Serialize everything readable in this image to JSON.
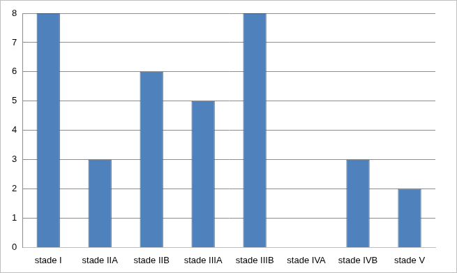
{
  "chart_data": {
    "type": "bar",
    "categories": [
      "stade I",
      "stade IIA",
      "stade IIB",
      "stade IIIA",
      "stade IIIB",
      "stade IVA",
      "stade IVB",
      "stade V"
    ],
    "values": [
      8,
      3,
      6,
      5,
      8,
      0,
      3,
      2
    ],
    "color": "#4f81bd",
    "ylim": [
      0,
      8
    ],
    "yticks": [
      0,
      1,
      2,
      3,
      4,
      5,
      6,
      7,
      8
    ],
    "grid": true
  }
}
